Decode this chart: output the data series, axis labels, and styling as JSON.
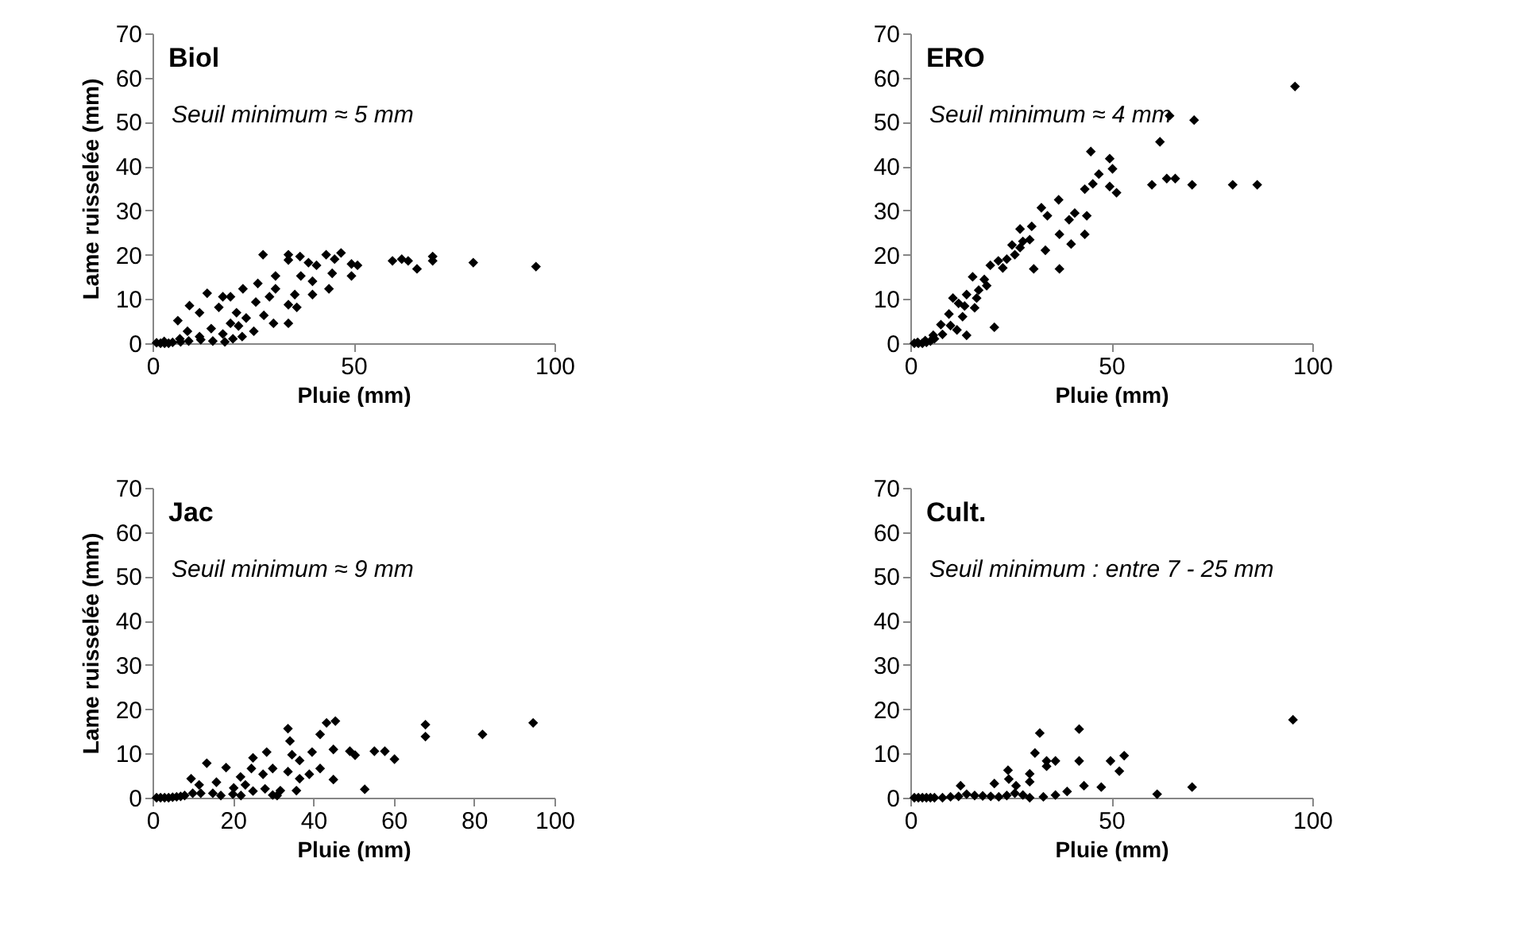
{
  "chart_data": [
    {
      "type": "scatter",
      "title": "Biol",
      "annotations": [
        "Seuil minimum ≈ 5 mm"
      ],
      "xlabel": "Pluie (mm)",
      "ylabel": "Lame ruisselée (mm)",
      "xlim": [
        0,
        100
      ],
      "ylim": [
        0,
        70
      ],
      "xticks": [
        0,
        50,
        100
      ],
      "yticks": [
        0,
        10,
        20,
        30,
        40,
        50,
        60,
        70
      ],
      "marker": "diamond",
      "series": [
        {
          "color": "#000000",
          "x": [
            27.5,
            33.8,
            33.8,
            36.7,
            38.8,
            40.8,
            43.2,
            45.3,
            46.9,
            49.5,
            51,
            49.5,
            59.7,
            62,
            63.6,
            65.8,
            69.7,
            69.7,
            79.8,
            95.4,
            44.7,
            43.9,
            39.8,
            39.8,
            36.9,
            33.8,
            35.9,
            33.8,
            35.4,
            30.6,
            30.6,
            30.1,
            29.1,
            26.2,
            25.7,
            22.5,
            13.6,
            19.4,
            17.5,
            9.2,
            6.3,
            11.7,
            16.5,
            20.9,
            23.3,
            25.2,
            27.7,
            19.4,
            14.6,
            8.7,
            11.7,
            17.5,
            21.4,
            22.3,
            6.8,
            2.9,
            1,
            2,
            3,
            4,
            5,
            7,
            9,
            12,
            15,
            18,
            20
          ],
          "values": [
            20,
            20,
            18.8,
            19.6,
            18.2,
            17.6,
            20,
            19,
            20.4,
            17.9,
            17.6,
            15.2,
            18.6,
            19,
            18.6,
            16.8,
            19.6,
            18.6,
            18.2,
            17.3,
            15.8,
            12.3,
            14,
            11,
            15.2,
            8.7,
            8.1,
            4.5,
            11,
            15.2,
            12.3,
            4.5,
            10.5,
            13.5,
            9.3,
            12.3,
            11.3,
            10.5,
            10.5,
            8.5,
            5.1,
            6.9,
            8.1,
            6.9,
            5.7,
            2.7,
            6.3,
            4.5,
            3.3,
            2.7,
            1.5,
            2.1,
            3.9,
            1.5,
            1,
            0.4,
            0.1,
            0,
            0,
            0,
            0.2,
            0.3,
            0.5,
            0.8,
            0.5,
            0.3,
            1
          ]
        }
      ]
    },
    {
      "type": "scatter",
      "title": "ERO",
      "annotations": [
        "Seuil minimum ≈ 4 mm"
      ],
      "xlabel": "Pluie (mm)",
      "xlim": [
        0,
        100
      ],
      "ylim": [
        0,
        70
      ],
      "xticks": [
        0,
        50,
        100
      ],
      "yticks": [
        0,
        10,
        20,
        30,
        40,
        50,
        60,
        70
      ],
      "marker": "diamond",
      "series": [
        {
          "color": "#000000",
          "x": [
            95.7,
            64.5,
            70.6,
            62.1,
            60.1,
            63.8,
            65.9,
            70.1,
            80.2,
            86.3,
            44.9,
            49.6,
            50.3,
            49.6,
            51.3,
            46.9,
            45.4,
            43.4,
            43.9,
            43.4,
            40.9,
            39.5,
            40,
            36.9,
            37.1,
            32.6,
            34.1,
            33.6,
            37.1,
            30.2,
            27.3,
            27.3,
            25.3,
            29.7,
            30.7,
            21.9,
            19.9,
            18.4,
            15.5,
            20.9,
            16.5,
            13.5,
            10.6,
            9.6,
            7.6,
            14,
            11.6,
            5.7,
            3.7,
            1.8,
            24,
            26,
            28,
            23,
            17,
            19,
            14,
            12,
            13,
            16,
            10,
            8,
            6,
            5,
            4,
            3,
            2,
            1
          ],
          "values": [
            58,
            51.4,
            50.4,
            45.5,
            35.8,
            37.2,
            37.2,
            35.8,
            35.8,
            35.8,
            43.3,
            41.7,
            39.4,
            35.4,
            34,
            38.2,
            36,
            34.8,
            28.8,
            24.6,
            29.4,
            27.9,
            22.4,
            32.4,
            24.6,
            30.6,
            28.8,
            21,
            16.8,
            26.4,
            25.8,
            21.6,
            22.2,
            23.4,
            16.8,
            18.6,
            17.6,
            14.4,
            15,
            3.6,
            10.2,
            8.4,
            10.2,
            6.6,
            4.2,
            1.8,
            3,
            1.8,
            0.6,
            0.2,
            19,
            20,
            23,
            17,
            12,
            13,
            11,
            9,
            6,
            8,
            4,
            2,
            1,
            0.5,
            0.2,
            0,
            0,
            0
          ]
        }
      ]
    },
    {
      "type": "scatter",
      "title": "Jac",
      "annotations": [
        "Seuil minimum ≈ 9 mm"
      ],
      "xlabel": "Pluie (mm)",
      "ylabel": "Lame ruisselée (mm)",
      "xlim": [
        0,
        100
      ],
      "ylim": [
        0,
        70
      ],
      "xticks": [
        0,
        20,
        40,
        60,
        80,
        100
      ],
      "yticks": [
        0,
        10,
        20,
        30,
        40,
        50,
        60,
        70
      ],
      "marker": "diamond",
      "series": [
        {
          "color": "#000000",
          "x": [
            94.7,
            82.1,
            67.9,
            67.9,
            60.2,
            57.8,
            55.2,
            52.8,
            50.4,
            49.1,
            45.5,
            43.3,
            41.7,
            41.7,
            45,
            45,
            39.7,
            39,
            36.6,
            36.6,
            35.8,
            33.7,
            34.2,
            34.7,
            33.7,
            31.8,
            29.9,
            28.4,
            29.9,
            27.5,
            25,
            24.6,
            21.9,
            18.3,
            13.5,
            9.6,
            11.6,
            15.9,
            20.2,
            23.1,
            1,
            2,
            3,
            4,
            5,
            6,
            7,
            8,
            10,
            12,
            15,
            17,
            20,
            22,
            25,
            28,
            31
          ],
          "values": [
            16.9,
            14.3,
            16.5,
            13.8,
            8.7,
            10.5,
            10.5,
            1.9,
            9.6,
            10.5,
            17.3,
            16.9,
            14.3,
            6.6,
            10.9,
            4.1,
            10.3,
            5.3,
            8.4,
            4.3,
            1.6,
            15.6,
            12.8,
            9.7,
            5.9,
            1.6,
            0.6,
            10.3,
            6.6,
            5.3,
            9,
            6.6,
            4.7,
            6.8,
            7.8,
            4.3,
            2.9,
            3.5,
            2.2,
            2.9,
            0,
            0,
            0,
            0,
            0.1,
            0.2,
            0.3,
            0.5,
            1,
            1,
            1,
            0.5,
            0.8,
            0.5,
            1.5,
            2,
            0.5
          ]
        }
      ]
    },
    {
      "type": "scatter",
      "title": "Cult.",
      "annotations": [
        "Seuil minimum : entre 7 - 25 mm"
      ],
      "xlabel": "Pluie (mm)",
      "xlim": [
        0,
        100
      ],
      "ylim": [
        0,
        70
      ],
      "xticks": [
        0,
        50,
        100
      ],
      "yticks": [
        0,
        10,
        20,
        30,
        40,
        50,
        60,
        70
      ],
      "marker": "diamond",
      "series": [
        {
          "color": "#000000",
          "x": [
            95.2,
            70.1,
            61.4,
            53.2,
            52,
            49.8,
            47.5,
            43.2,
            42,
            42,
            36.1,
            33.9,
            33.9,
            32.2,
            31,
            29.7,
            29.7,
            29.7,
            24.3,
            24.5,
            26.3,
            20.9,
            12.5,
            39,
            36.1,
            33.1,
            1,
            2,
            3,
            4,
            5,
            6,
            8,
            10,
            12,
            14,
            16,
            18,
            20,
            22,
            24,
            26,
            28
          ],
          "values": [
            17.6,
            2.4,
            0.8,
            9.5,
            6,
            8.3,
            2.4,
            2.7,
            15.5,
            8.3,
            8.3,
            8.3,
            7.1,
            14.6,
            10.1,
            5.4,
            3.6,
            0,
            6.2,
            4.2,
            2.7,
            3.2,
            2.7,
            1.4,
            0.6,
            0.2,
            0,
            0,
            0,
            0,
            0,
            0,
            0,
            0.2,
            0.3,
            0.8,
            0.5,
            0.4,
            0.3,
            0.2,
            0.5,
            1,
            0.6
          ]
        }
      ]
    }
  ]
}
